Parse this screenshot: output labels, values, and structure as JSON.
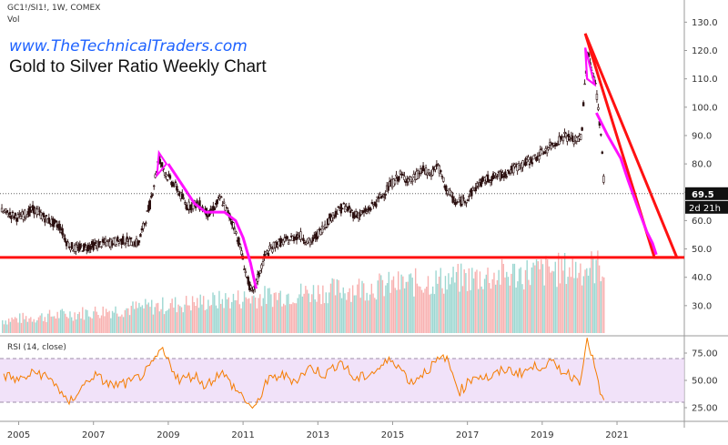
{
  "header": {
    "symbol": "GC1!/SI1!, 1W, COMEX",
    "volume_label": "Vol",
    "site": "www.TheTechnicalTraders.com",
    "title": "Gold to Silver Ratio Weekly Chart"
  },
  "rsi_panel": {
    "label": "RSI (14, close)"
  },
  "price_tag": {
    "value": "69.5",
    "countdown": "2d 21h"
  },
  "colors": {
    "up": "#26a69a",
    "down": "#ef5350",
    "candle": "#2b0f0f",
    "support_line": "#ff1111",
    "magenta": "#ff10ff",
    "rsi_line": "#f57c00",
    "rsi_band": "#ecd8f7",
    "tag_bg": "#111111"
  },
  "chart_data": [
    {
      "type": "line",
      "title": "Gold to Silver Ratio Weekly Chart",
      "symbol": "GC1!/SI1!",
      "x_tick_labels": [
        "2005",
        "2007",
        "2009",
        "2011",
        "2013",
        "2015",
        "2017",
        "2019",
        "2021"
      ],
      "y_tick_labels": [
        "30.0",
        "40.0",
        "50.0",
        "60.0",
        "70.0",
        "80.0",
        "90.0",
        "100.0",
        "110.0",
        "120.0",
        "130.0"
      ],
      "ylim": [
        20,
        133
      ],
      "xlim": [
        2004.5,
        2022.8
      ],
      "grid": false,
      "series": [
        {
          "name": "",
          "x": [
            2004.6,
            2005.0,
            2005.4,
            2005.8,
            2006.1,
            2006.3,
            2006.5,
            2006.9,
            2007.3,
            2007.8,
            2008.2,
            2008.5,
            2008.75,
            2008.95,
            2009.2,
            2009.5,
            2009.8,
            2010.1,
            2010.4,
            2010.7,
            2010.9,
            2011.1,
            2011.25,
            2011.4,
            2011.6,
            2011.9,
            2012.2,
            2012.5,
            2012.8,
            2013.1,
            2013.4,
            2013.7,
            2014.0,
            2014.3,
            2014.6,
            2014.9,
            2015.2,
            2015.5,
            2015.8,
            2016.0,
            2016.2,
            2016.4,
            2016.7,
            2017.0,
            2017.3,
            2017.6,
            2017.9,
            2018.2,
            2018.5,
            2018.8,
            2019.1,
            2019.4,
            2019.6,
            2019.9,
            2020.05,
            2020.15,
            2020.22,
            2020.3,
            2020.4,
            2020.5,
            2020.6,
            2020.66
          ],
          "values": [
            63,
            61,
            64,
            60,
            58,
            52,
            50,
            51,
            52,
            53,
            52,
            65,
            82,
            76,
            72,
            65,
            66,
            62,
            68,
            60,
            52,
            40,
            34,
            40,
            48,
            52,
            53,
            55,
            52,
            57,
            62,
            65,
            62,
            63,
            67,
            72,
            76,
            74,
            78,
            76,
            80,
            72,
            66,
            68,
            73,
            75,
            76,
            78,
            80,
            82,
            85,
            88,
            90,
            88,
            90,
            110,
            120,
            114,
            110,
            100,
            85,
            70
          ]
        }
      ],
      "support_level": 47,
      "current_value": 69.5
    },
    {
      "type": "line",
      "title": "RSI (14, close)",
      "y_tick_labels": [
        "25.00",
        "50.00",
        "75.00"
      ],
      "ylim": [
        15,
        90
      ],
      "band": [
        30,
        70
      ],
      "series": [
        {
          "name": "",
          "x": [
            2004.6,
            2005.0,
            2005.5,
            2006.0,
            2006.3,
            2006.6,
            2007.0,
            2007.5,
            2008.0,
            2008.5,
            2008.8,
            2009.0,
            2009.3,
            2009.7,
            2010.0,
            2010.4,
            2010.8,
            2011.0,
            2011.3,
            2011.6,
            2012.0,
            2012.4,
            2012.8,
            2013.2,
            2013.6,
            2014.0,
            2014.5,
            2015.0,
            2015.5,
            2016.0,
            2016.4,
            2016.8,
            2017.2,
            2017.6,
            2018.0,
            2018.4,
            2018.8,
            2019.2,
            2019.6,
            2020.0,
            2020.2,
            2020.35,
            2020.5,
            2020.66
          ],
          "values": [
            55,
            50,
            58,
            47,
            28,
            40,
            55,
            45,
            48,
            60,
            78,
            68,
            50,
            55,
            45,
            58,
            42,
            35,
            22,
            48,
            55,
            50,
            62,
            55,
            68,
            50,
            58,
            70,
            48,
            62,
            72,
            40,
            55,
            52,
            60,
            57,
            62,
            66,
            58,
            50,
            88,
            70,
            45,
            28
          ]
        }
      ]
    }
  ]
}
